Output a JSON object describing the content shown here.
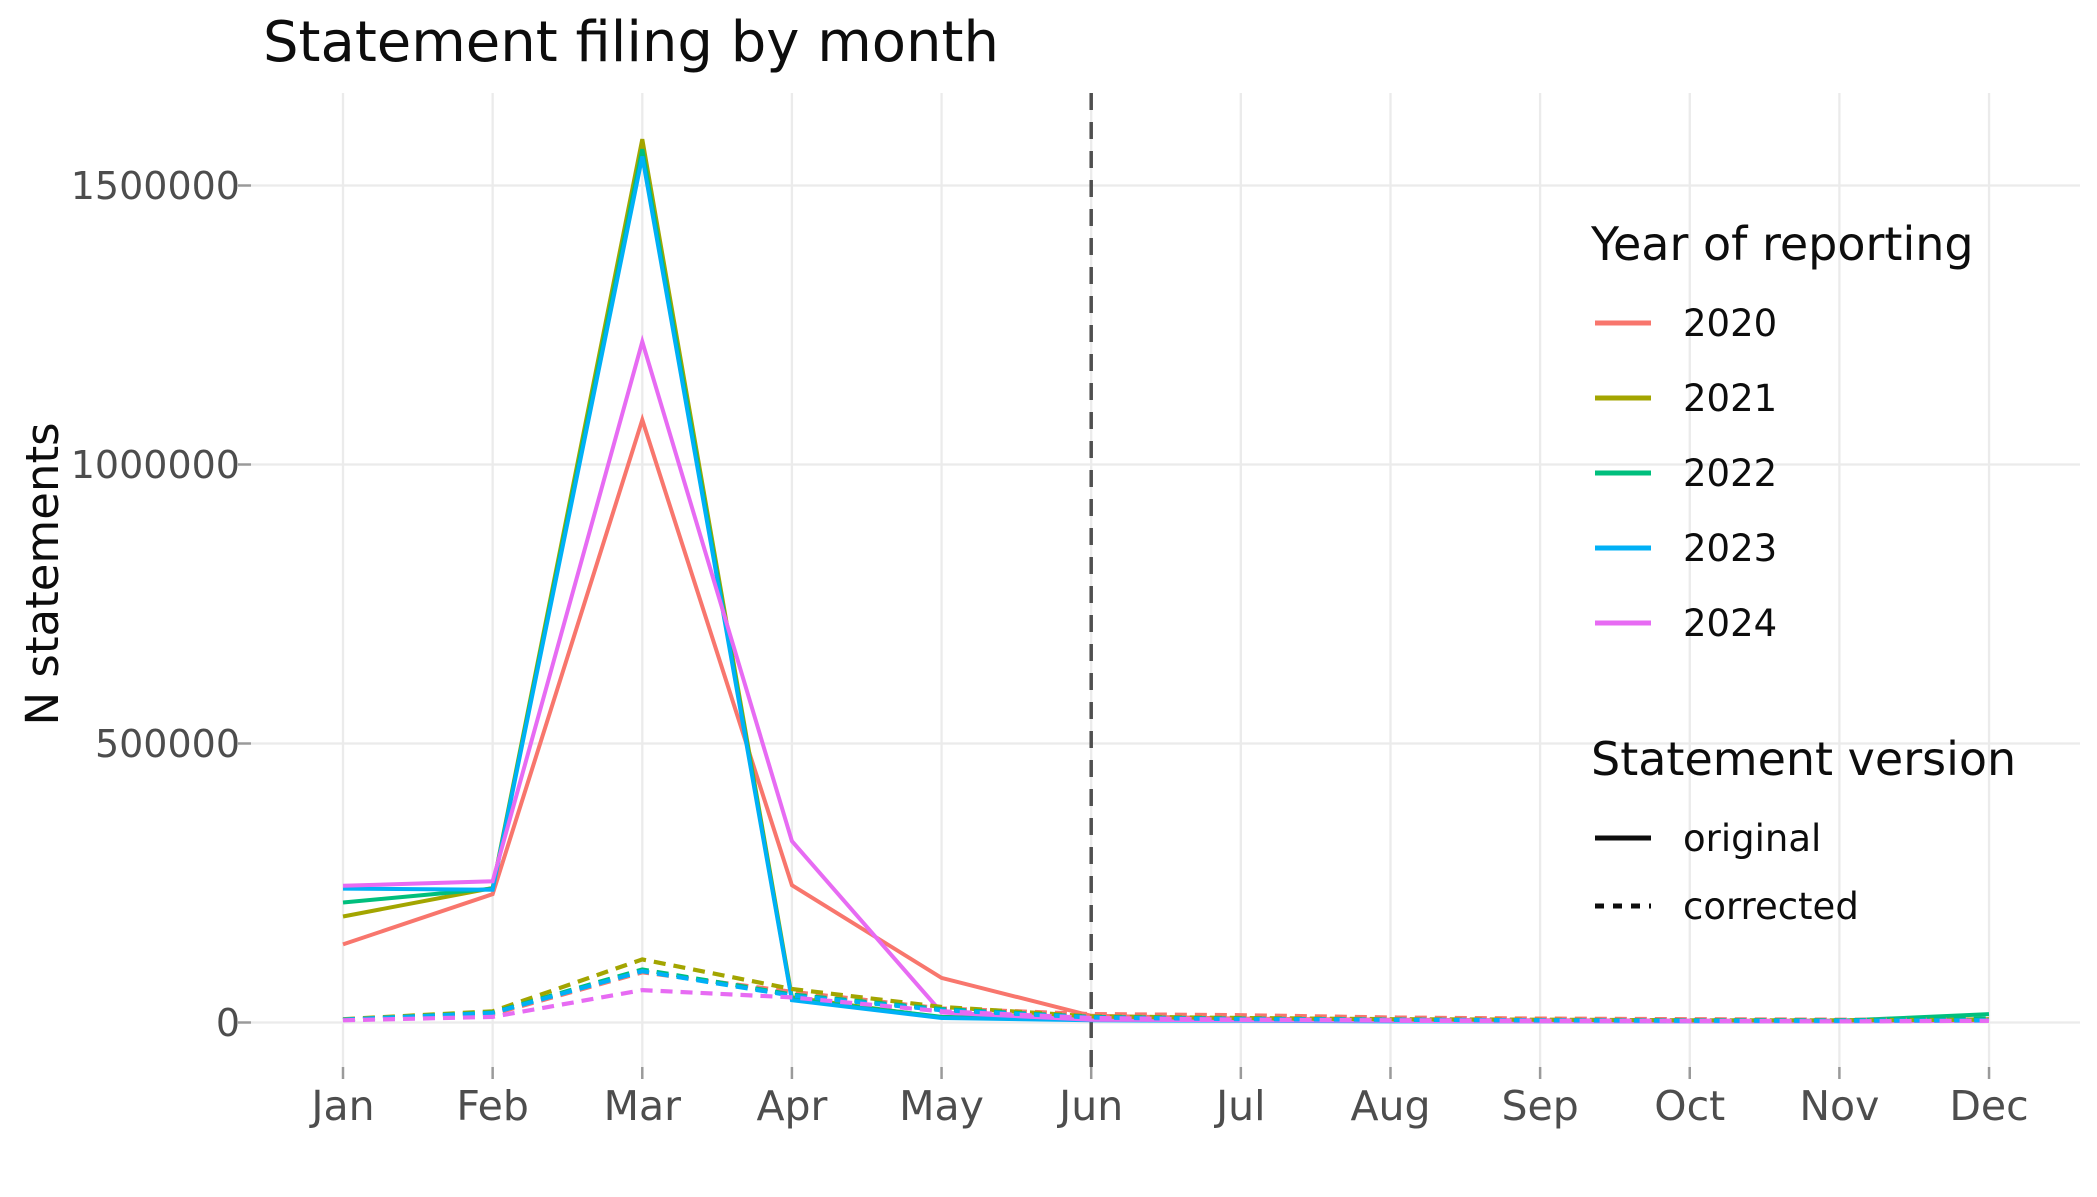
{
  "title": "Statement filing by month",
  "axes": {
    "x": {
      "ticks": [
        "Jan",
        "Feb",
        "Mar",
        "Apr",
        "May",
        "Jun",
        "Jul",
        "Aug",
        "Sep",
        "Oct",
        "Nov",
        "Dec"
      ]
    },
    "y": {
      "label": "N statements",
      "ticks": [
        "0",
        "500000",
        "1000000",
        "1500000"
      ],
      "tick_values": [
        0,
        500000,
        1000000,
        1500000
      ]
    }
  },
  "legend_years": {
    "title": "Year of reporting",
    "items": [
      {
        "label": "2020",
        "color": "#F8766D"
      },
      {
        "label": "2021",
        "color": "#A3A500"
      },
      {
        "label": "2022",
        "color": "#00BF7D"
      },
      {
        "label": "2023",
        "color": "#00B0F6"
      },
      {
        "label": "2024",
        "color": "#E76BF3"
      }
    ]
  },
  "legend_version": {
    "title": "Statement version",
    "items": [
      {
        "label": "original",
        "style": "solid"
      },
      {
        "label": "corrected",
        "style": "dashed"
      }
    ]
  },
  "colors": {
    "grid": "#ebebeb",
    "tick_mark": "#9a9a9a",
    "axis_text": "#4d4d4d",
    "vline": "#4f4f4f",
    "background": "#ffffff"
  },
  "chart_data": {
    "type": "line",
    "title": "Statement filing by month",
    "xlabel": "",
    "ylabel": "N statements",
    "x": [
      "Jan",
      "Feb",
      "Mar",
      "Apr",
      "May",
      "Jun",
      "Jul",
      "Aug",
      "Sep",
      "Oct",
      "Nov",
      "Dec"
    ],
    "ylim": [
      0,
      1600000
    ],
    "grid": true,
    "legend_position": "right-inside",
    "annotations": [
      {
        "type": "vline",
        "x": "Jun",
        "style": "dashed",
        "color": "#4f4f4f"
      }
    ],
    "series": [
      {
        "name": "2020",
        "version": "original",
        "color": "#F8766D",
        "dash": false,
        "values": [
          140000,
          230000,
          1080000,
          246000,
          80000,
          12000,
          7000,
          5000,
          4000,
          3000,
          3000,
          6000
        ]
      },
      {
        "name": "2021",
        "version": "original",
        "color": "#A3A500",
        "dash": false,
        "values": [
          190000,
          241000,
          1583000,
          45000,
          9000,
          5000,
          4000,
          3000,
          2000,
          2000,
          2000,
          6000
        ]
      },
      {
        "name": "2022",
        "version": "original",
        "color": "#00BF7D",
        "dash": false,
        "values": [
          215000,
          240000,
          1565000,
          42000,
          10000,
          5000,
          4000,
          3000,
          2000,
          2000,
          3000,
          15000
        ]
      },
      {
        "name": "2023",
        "version": "original",
        "color": "#00B0F6",
        "dash": false,
        "values": [
          240000,
          238000,
          1552000,
          40000,
          8000,
          4000,
          3000,
          2000,
          2000,
          2000,
          2000,
          4000
        ]
      },
      {
        "name": "2024",
        "version": "original",
        "color": "#E76BF3",
        "dash": false,
        "values": [
          245000,
          253000,
          1220000,
          325000,
          18000,
          5000,
          4000,
          3000,
          2000,
          2000,
          2000,
          3000
        ]
      },
      {
        "name": "2020",
        "version": "corrected",
        "color": "#F8766D",
        "dash": true,
        "values": [
          5000,
          15000,
          90000,
          55000,
          25000,
          15000,
          13000,
          9000,
          7000,
          6000,
          5000,
          5000
        ]
      },
      {
        "name": "2021",
        "version": "corrected",
        "color": "#A3A500",
        "dash": true,
        "values": [
          6000,
          20000,
          113000,
          60000,
          28000,
          11000,
          8000,
          6000,
          5000,
          4000,
          4000,
          5000
        ]
      },
      {
        "name": "2022",
        "version": "corrected",
        "color": "#00BF7D",
        "dash": true,
        "values": [
          5000,
          18000,
          95000,
          50000,
          24000,
          10000,
          7000,
          5000,
          4000,
          4000,
          4000,
          7000
        ]
      },
      {
        "name": "2023",
        "version": "corrected",
        "color": "#00B0F6",
        "dash": true,
        "values": [
          5000,
          17000,
          92000,
          48000,
          22000,
          9000,
          6000,
          5000,
          4000,
          3000,
          3000,
          4000
        ]
      },
      {
        "name": "2024",
        "version": "corrected",
        "color": "#E76BF3",
        "dash": true,
        "values": [
          4000,
          10000,
          58000,
          45000,
          20000,
          8000,
          5000,
          4000,
          3000,
          3000,
          2000,
          3000
        ]
      }
    ]
  }
}
